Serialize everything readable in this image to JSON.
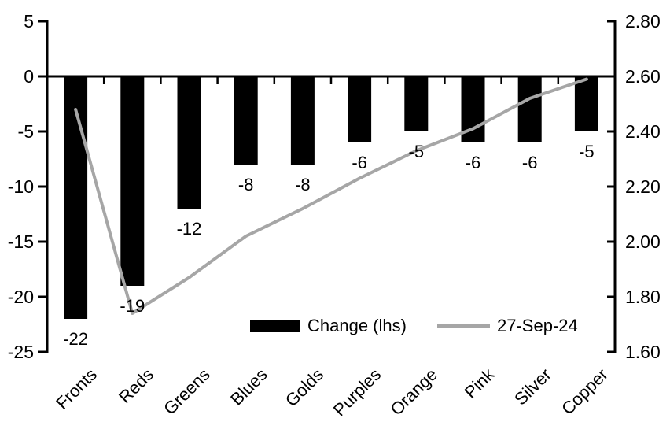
{
  "chart_data": {
    "type": "bar",
    "title": "",
    "xlabel": "",
    "ylabel": "",
    "categories": [
      "Fronts",
      "Reds",
      "Greens",
      "Blues",
      "Golds",
      "Purples",
      "Orange",
      "Pink",
      "Silver",
      "Copper"
    ],
    "series": [
      {
        "name": "Change (lhs)",
        "type": "bar",
        "axis": "left",
        "color": "#000000",
        "values": [
          -22,
          -19,
          -12,
          -8,
          -8,
          -6,
          -5,
          -6,
          -6,
          -5
        ],
        "labels": [
          "-22",
          "-19",
          "-12",
          "-8",
          "-8",
          "-6",
          "-5",
          "-6",
          "-6",
          "-5"
        ]
      },
      {
        "name": "27-Sep-24",
        "type": "line",
        "axis": "right",
        "color": "#a6a6a6",
        "values": [
          2.48,
          1.74,
          1.87,
          2.02,
          2.12,
          2.23,
          2.33,
          2.41,
          2.52,
          2.59
        ]
      }
    ],
    "left_axis": {
      "min": -25,
      "max": 5,
      "tick_step": 5,
      "ticks": [
        "5",
        "0",
        "-5",
        "-10",
        "-15",
        "-20",
        "-25"
      ]
    },
    "right_axis": {
      "min": 1.6,
      "max": 2.8,
      "tick_step": 0.2,
      "ticks": [
        "2.80",
        "2.60",
        "2.40",
        "2.20",
        "2.00",
        "1.80",
        "1.60"
      ]
    },
    "legend": {
      "position": "bottom-center",
      "entries": [
        "Change (lhs)",
        "27-Sep-24"
      ]
    },
    "grid": false,
    "axis_color": "#000000"
  }
}
